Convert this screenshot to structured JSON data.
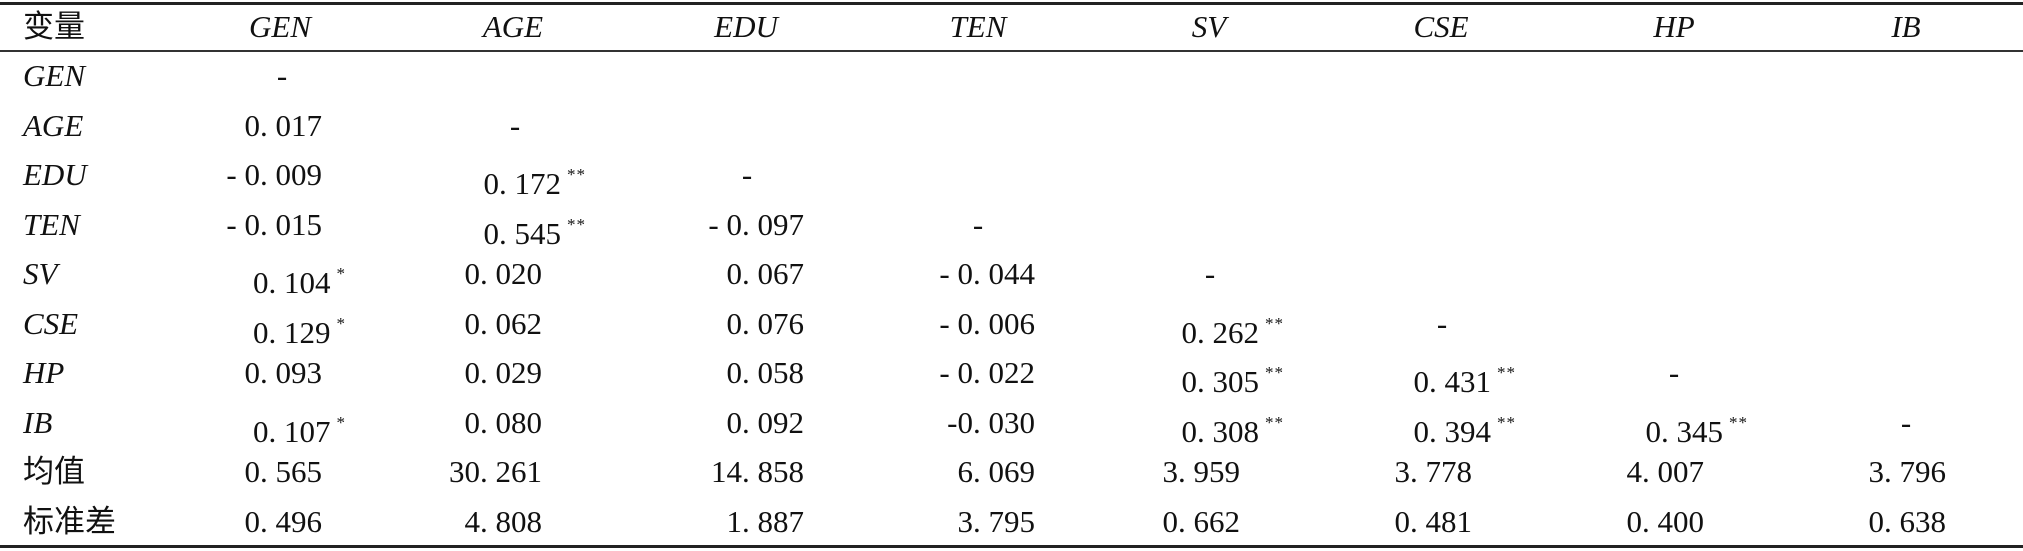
{
  "table": {
    "columns": [
      "变量",
      "GEN",
      "AGE",
      "EDU",
      "TEN",
      "SV",
      "CSE",
      "HP",
      "IB"
    ],
    "rows": [
      {
        "label": "GEN",
        "cells": [
          {
            "v": "-"
          }
        ]
      },
      {
        "label": "AGE",
        "cells": [
          {
            "v": "0. 017"
          },
          {
            "v": "-"
          }
        ]
      },
      {
        "label": "EDU",
        "cells": [
          {
            "v": "- 0. 009"
          },
          {
            "v": "0. 172",
            "s": "**"
          },
          {
            "v": "-"
          }
        ]
      },
      {
        "label": "TEN",
        "cells": [
          {
            "v": "- 0. 015"
          },
          {
            "v": "0. 545",
            "s": "**"
          },
          {
            "v": "- 0. 097"
          },
          {
            "v": "-"
          }
        ]
      },
      {
        "label": "SV",
        "cells": [
          {
            "v": "0. 104",
            "s": "*"
          },
          {
            "v": "0. 020"
          },
          {
            "v": "0. 067"
          },
          {
            "v": "- 0. 044"
          },
          {
            "v": "-"
          }
        ]
      },
      {
        "label": "CSE",
        "cells": [
          {
            "v": "0. 129",
            "s": "*"
          },
          {
            "v": "0. 062"
          },
          {
            "v": "0. 076"
          },
          {
            "v": "- 0. 006"
          },
          {
            "v": "0. 262",
            "s": "**"
          },
          {
            "v": "-"
          }
        ]
      },
      {
        "label": "HP",
        "cells": [
          {
            "v": "0. 093"
          },
          {
            "v": "0. 029"
          },
          {
            "v": "0. 058"
          },
          {
            "v": "- 0. 022"
          },
          {
            "v": "0. 305",
            "s": "**"
          },
          {
            "v": "0. 431",
            "s": "**"
          },
          {
            "v": "-"
          }
        ]
      },
      {
        "label": "IB",
        "cells": [
          {
            "v": "0. 107",
            "s": "*"
          },
          {
            "v": "0. 080"
          },
          {
            "v": "0. 092"
          },
          {
            "v": "-0. 030"
          },
          {
            "v": "0. 308",
            "s": "**"
          },
          {
            "v": "0. 394",
            "s": "**"
          },
          {
            "v": "0. 345",
            "s": "**"
          },
          {
            "v": "-"
          }
        ]
      },
      {
        "label": "均值",
        "cells": [
          {
            "v": "0. 565"
          },
          {
            "v": "30. 261"
          },
          {
            "v": "14. 858"
          },
          {
            "v": "6. 069"
          },
          {
            "v": "3. 959"
          },
          {
            "v": "3. 778"
          },
          {
            "v": "4. 007"
          },
          {
            "v": "3. 796"
          }
        ]
      },
      {
        "label": "标准差",
        "cells": [
          {
            "v": "0. 496"
          },
          {
            "v": "4. 808"
          },
          {
            "v": "1. 887"
          },
          {
            "v": "3. 795"
          },
          {
            "v": "0. 662"
          },
          {
            "v": "0. 481"
          },
          {
            "v": "0. 400"
          },
          {
            "v": "0. 638"
          }
        ]
      }
    ]
  }
}
